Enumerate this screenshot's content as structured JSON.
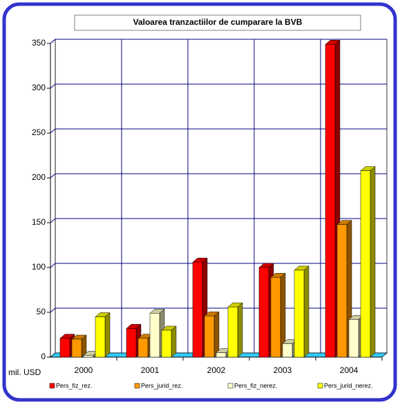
{
  "chart_data": {
    "type": "bar3d",
    "title": "Valoarea tranzactiilor de cumparare la BVB",
    "y_label": "mil. USD",
    "categories": [
      "2000",
      "2001",
      "2002",
      "2003",
      "2004"
    ],
    "series": [
      {
        "name": "Pers_fiz_rez.",
        "color": "#ff0000",
        "values": [
          21,
          32,
          106,
          100,
          349
        ]
      },
      {
        "name": "Pers_jurid_rez.",
        "color": "#ff9900",
        "values": [
          20,
          21,
          46,
          89,
          148
        ]
      },
      {
        "name": "Pers_fiz_nerez.",
        "color": "#ffffcc",
        "values": [
          2,
          49,
          5,
          15,
          42
        ]
      },
      {
        "name": "Pers_jurid_nerez.",
        "color": "#ffff00",
        "values": [
          45,
          30,
          56,
          97,
          208
        ]
      }
    ],
    "ylim": [
      0,
      350
    ],
    "yticks": [
      0,
      50,
      100,
      150,
      200,
      250,
      300,
      350
    ],
    "grid": true,
    "legend": "bottom"
  }
}
